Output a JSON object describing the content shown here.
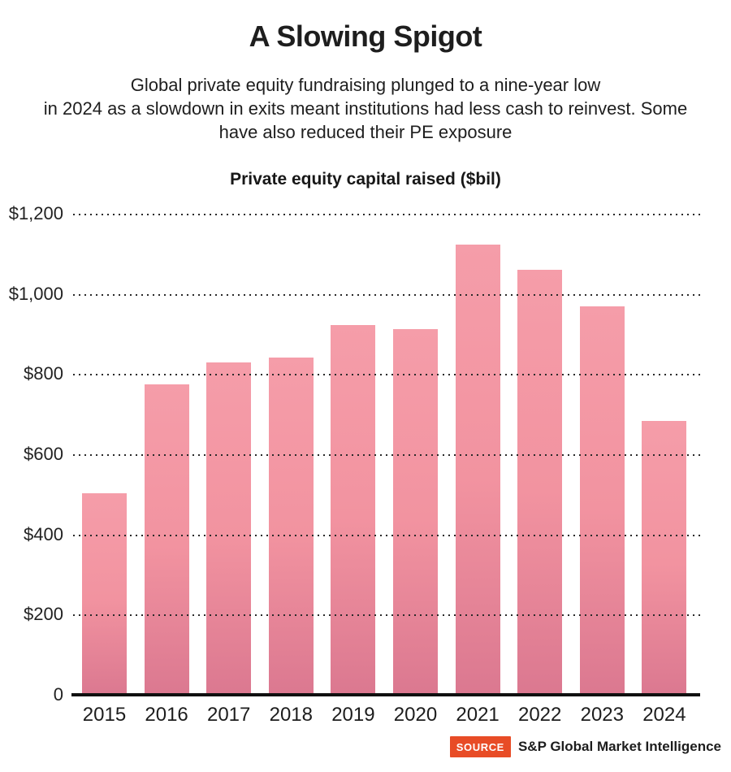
{
  "header": {
    "title": "A Slowing Spigot",
    "subtitle_lines": [
      "Global private equity fundraising plunged to a nine-year low",
      "in 2024 as a slowdown in exits meant institutions had less cash to reinvest. Some",
      "have also reduced their PE exposure"
    ]
  },
  "chart_data": {
    "type": "bar",
    "title": "Private equity capital raised ($bil)",
    "categories": [
      "2015",
      "2016",
      "2017",
      "2018",
      "2019",
      "2020",
      "2021",
      "2022",
      "2023",
      "2024"
    ],
    "values": [
      505,
      777,
      831,
      843,
      924,
      915,
      1126,
      1063,
      971,
      685
    ],
    "xlabel": "",
    "ylabel": "",
    "ylim": [
      0,
      1200
    ],
    "ytick_values": [
      0,
      200,
      400,
      600,
      800,
      1000,
      1200
    ],
    "ytick_labels": [
      "0",
      "$200",
      "$400",
      "$600",
      "$800",
      "$1,000",
      "$1,200"
    ],
    "grid": "horizontal-dotted-over-bars",
    "legend": "none",
    "bar_color_top": "#f59da9",
    "bar_color_bottom": "#db7890",
    "gridline_color": "#2a2a2a",
    "axis_color": "#101010"
  },
  "source": {
    "badge_label": "SOURCE",
    "badge_color": "#e84c26",
    "text": "S&P Global Market Intelligence"
  }
}
